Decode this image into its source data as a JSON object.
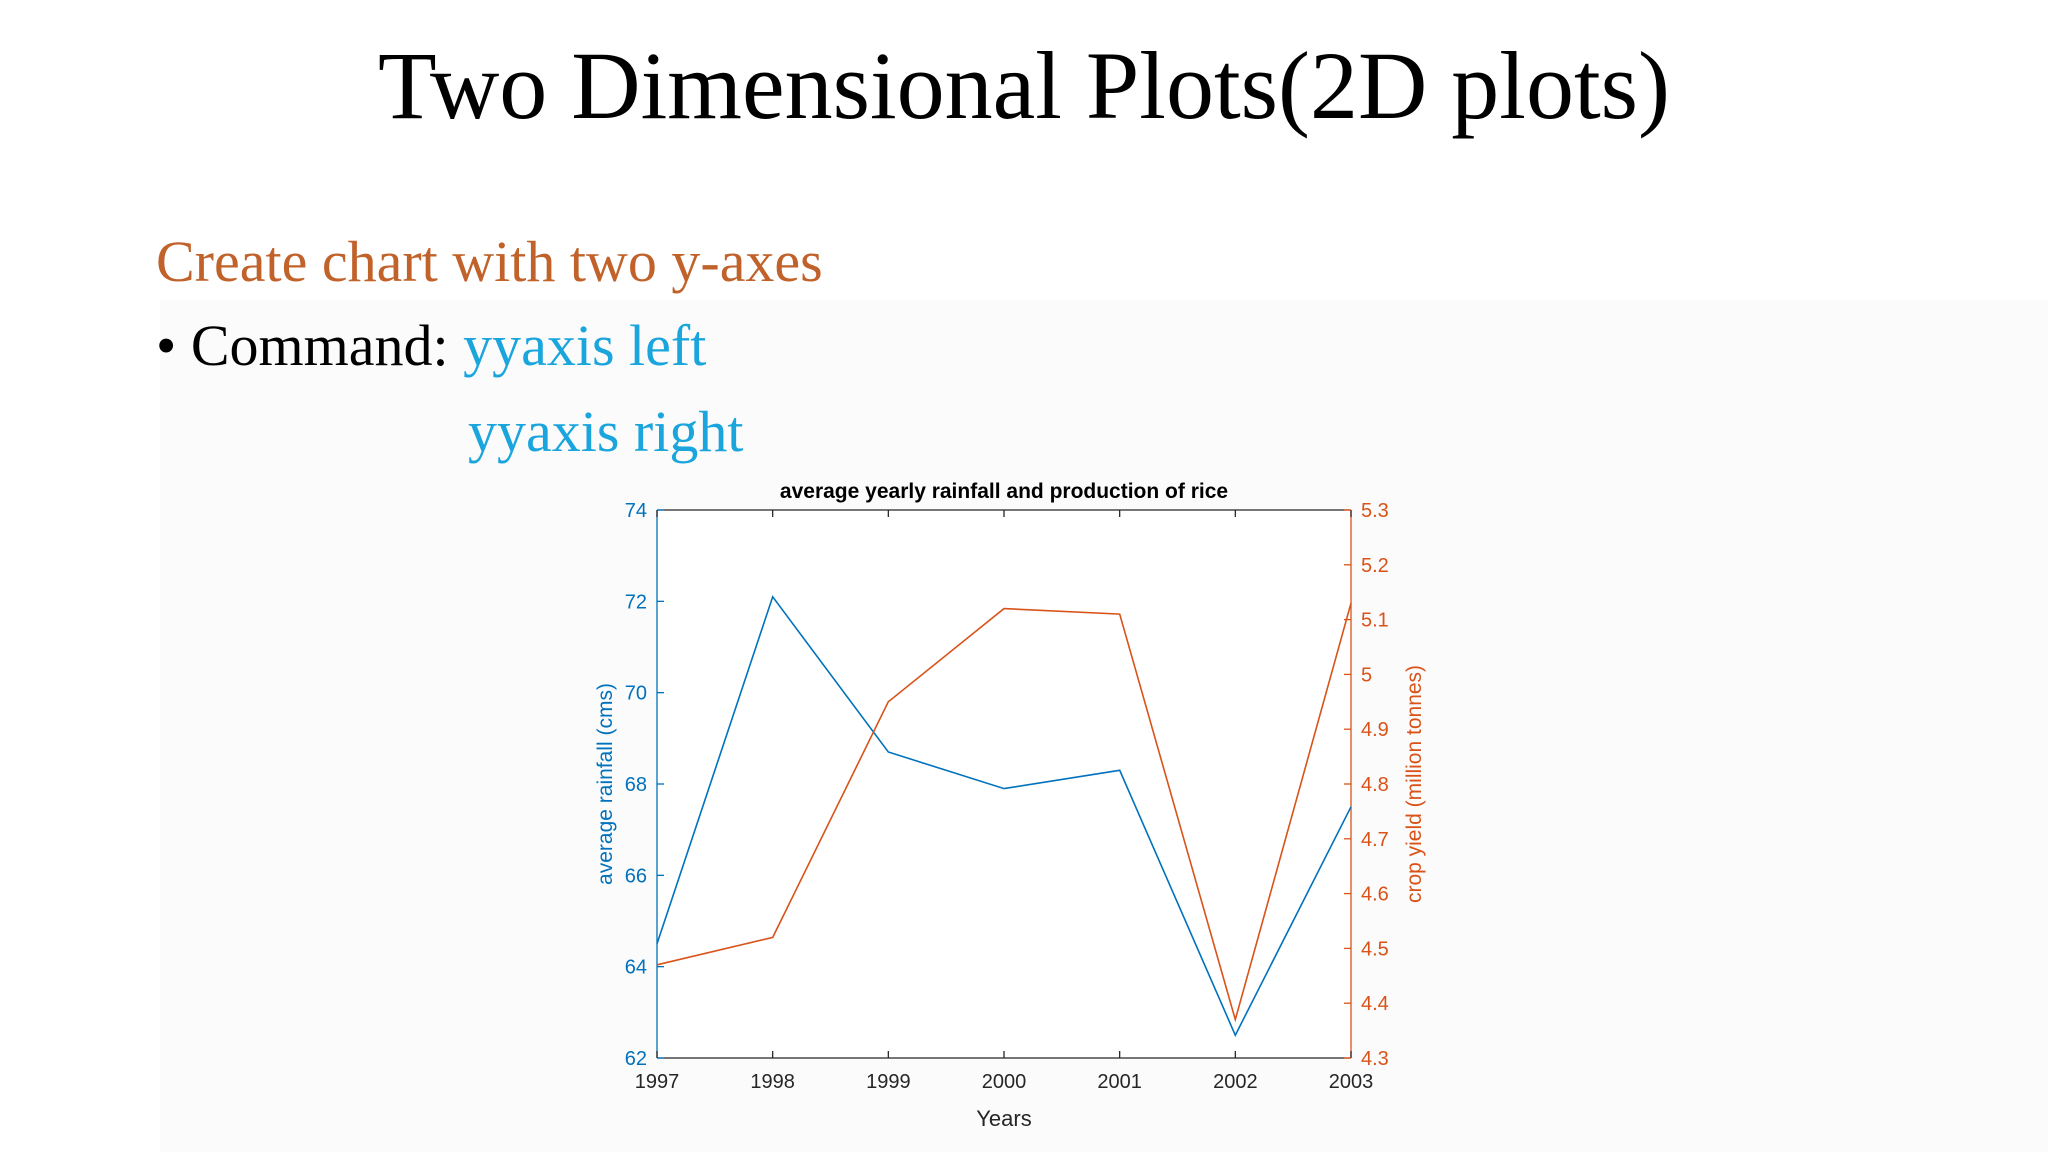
{
  "slide": {
    "title": "Two Dimensional Plots(2D plots)",
    "subtitle": "Create chart with two y-axes",
    "bullet": "•",
    "command_label": "Command:",
    "command_1": "yyaxis left",
    "command_2": "yyaxis right"
  },
  "colors": {
    "left_axis": "#0072bd",
    "right_axis": "#d95319",
    "subtitle": "#c0622a",
    "command": "#1aa5dc"
  },
  "chart_data": {
    "type": "line",
    "title": "average yearly rainfall and production of rice",
    "xlabel": "Years",
    "ylabel_left": "average rainfall (cms)",
    "ylabel_right": "crop yield (million tonnes)",
    "x": [
      1997,
      1998,
      1999,
      2000,
      2001,
      2002,
      2003
    ],
    "xlim": [
      1997,
      2003
    ],
    "ylim_left": [
      62,
      74
    ],
    "ylim_right": [
      4.3,
      5.3
    ],
    "x_ticks": [
      "1997",
      "1998",
      "1999",
      "2000",
      "2001",
      "2002",
      "2003"
    ],
    "y_ticks_left": [
      "62",
      "64",
      "66",
      "68",
      "70",
      "72",
      "74"
    ],
    "y_ticks_right": [
      "4.3",
      "4.4",
      "4.5",
      "4.6",
      "4.7",
      "4.8",
      "4.9",
      "5",
      "5.1",
      "5.2",
      "5.3"
    ],
    "grid": false,
    "series": [
      {
        "axis": "left",
        "color": "#0072bd",
        "values": [
          64.5,
          72.1,
          68.7,
          67.9,
          68.3,
          62.5,
          67.5
        ]
      },
      {
        "axis": "right",
        "color": "#d95319",
        "values": [
          4.47,
          4.52,
          4.95,
          5.12,
          5.11,
          4.37,
          5.13
        ]
      }
    ]
  }
}
